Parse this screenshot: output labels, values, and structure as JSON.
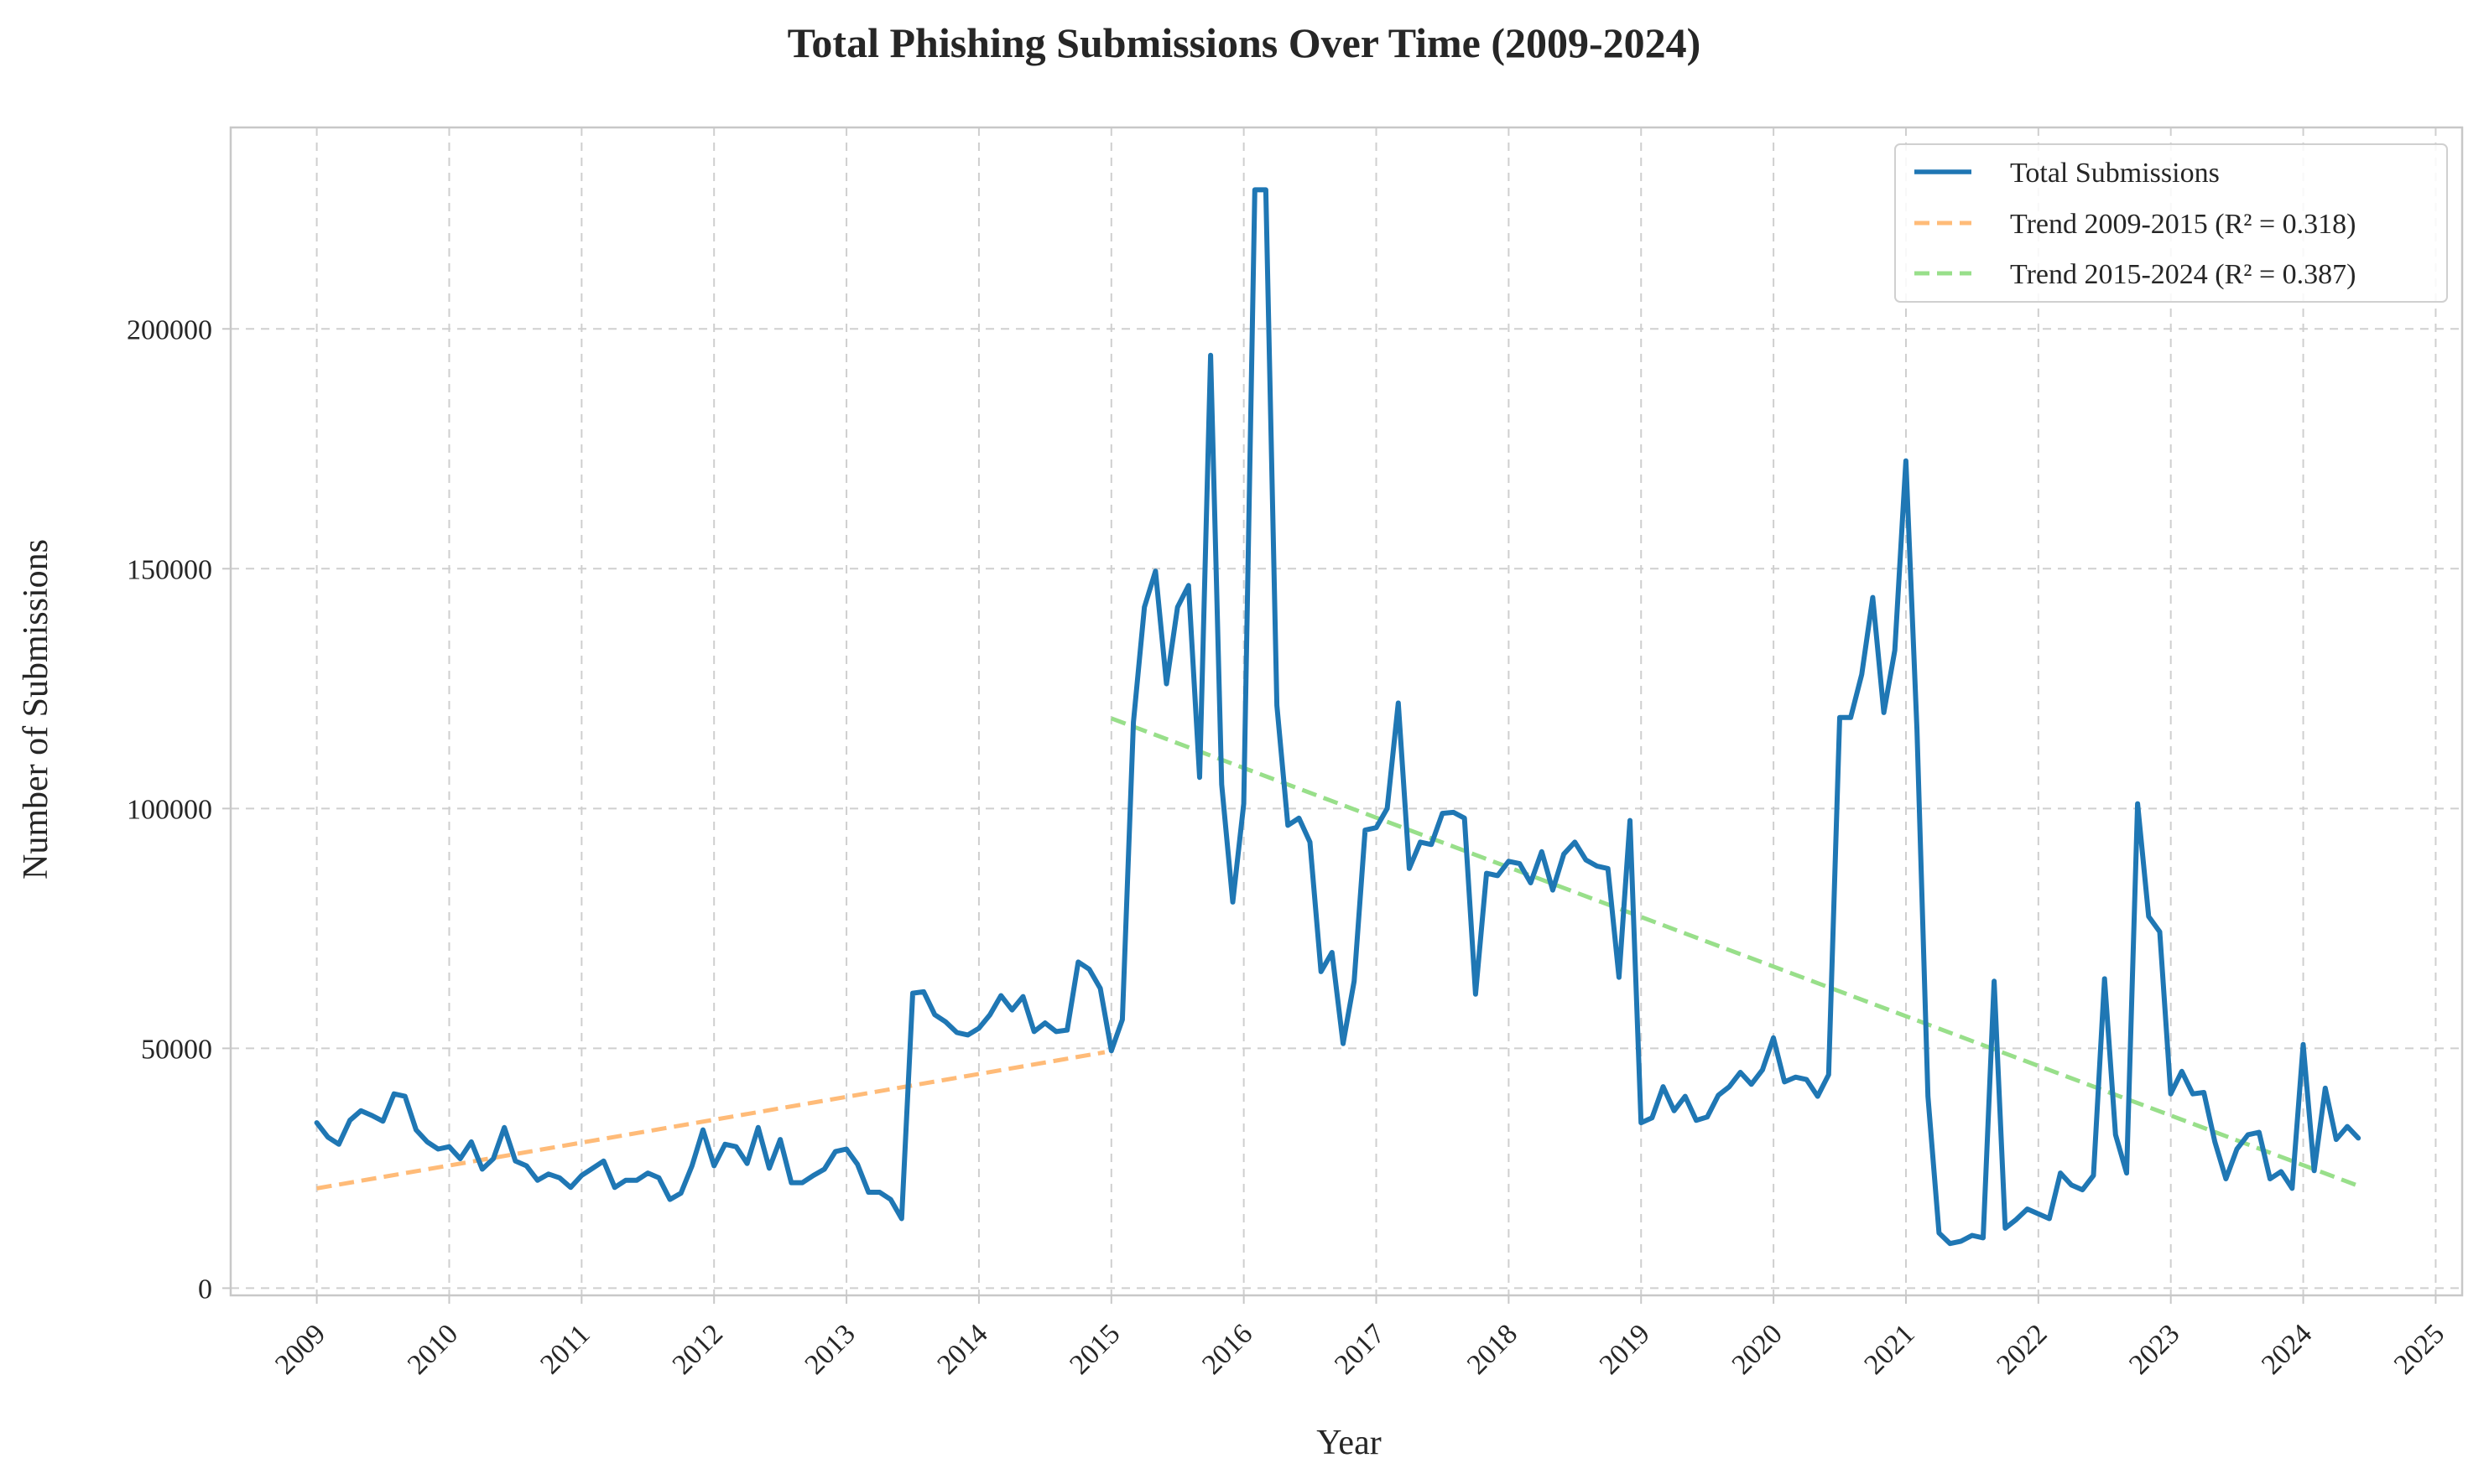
{
  "chart_data": {
    "type": "line",
    "title": "Total Phishing Submissions Over Time (2009-2024)",
    "xlabel": "Year",
    "ylabel": "Number of Submissions",
    "xlim": [
      2008.35,
      2025.2
    ],
    "ylim": [
      -1500,
      242000
    ],
    "xticks": [
      2009,
      2010,
      2011,
      2012,
      2013,
      2014,
      2015,
      2016,
      2017,
      2018,
      2019,
      2020,
      2021,
      2022,
      2023,
      2024,
      2025
    ],
    "xtick_labels": [
      "2009",
      "2010",
      "2011",
      "2012",
      "2013",
      "2014",
      "2015",
      "2016",
      "2017",
      "2018",
      "2019",
      "2020",
      "2021",
      "2022",
      "2023",
      "2024",
      "2025"
    ],
    "yticks": [
      0,
      50000,
      100000,
      150000,
      200000
    ],
    "ytick_labels": [
      "0",
      "50000",
      "100000",
      "150000",
      "200000"
    ],
    "grid": true,
    "legend_position": "top-right",
    "series": [
      {
        "name": "Total Submissions",
        "color": "#1f77b4",
        "style": "solid",
        "x_start": 2009.0,
        "x_step": 0.08333,
        "values": [
          34500,
          31500,
          30000,
          35000,
          37000,
          36000,
          34800,
          40500,
          40000,
          33000,
          30500,
          29000,
          29500,
          27000,
          30500,
          24800,
          27000,
          33500,
          26500,
          25500,
          22500,
          23800,
          23000,
          21000,
          23500,
          25000,
          26500,
          21000,
          22500,
          22500,
          24000,
          23000,
          18500,
          19800,
          25500,
          33000,
          25500,
          30000,
          29500,
          26000,
          33500,
          25000,
          31000,
          22000,
          22000,
          23500,
          24800,
          28500,
          29000,
          25800,
          20000,
          20000,
          18500,
          14500,
          61500,
          61800,
          57000,
          55500,
          53300,
          52800,
          54200,
          57000,
          61000,
          58000,
          60800,
          53500,
          55300,
          53500,
          53800,
          68000,
          66500,
          62500,
          49500,
          56000,
          118000,
          142000,
          149500,
          126000,
          142000,
          146500,
          106500,
          194500,
          105000,
          80500,
          101000,
          229000,
          229000,
          121500,
          96500,
          98000,
          93000,
          66000,
          70000,
          51000,
          64000,
          95500,
          96000,
          100000,
          122000,
          87500,
          93000,
          92500,
          99000,
          99200,
          98000,
          61300,
          86500,
          86000,
          89000,
          88500,
          84500,
          91000,
          83000,
          90500,
          93000,
          89300,
          88000,
          87500,
          64800,
          97500,
          34500,
          35500,
          42000,
          37000,
          40000,
          35000,
          35700,
          40200,
          42000,
          45000,
          42500,
          45500,
          52200,
          43000,
          44000,
          43500,
          40000,
          44500,
          119000,
          119000,
          128000,
          144000,
          120000,
          133000,
          172500,
          116500,
          40000,
          11500,
          9300,
          9800,
          11000,
          10500,
          64000,
          12500,
          14300,
          16500,
          15500,
          14500,
          24000,
          21500,
          20500,
          23500,
          64500,
          32000,
          24000,
          101000,
          77500,
          74300,
          40500,
          45200,
          40500,
          40800,
          30500,
          22800,
          29000,
          32000,
          32500,
          22800,
          24300,
          20800,
          50800,
          24500,
          41700,
          31000,
          33700,
          31300
        ]
      },
      {
        "name": "Trend 2009-2015 (R² = 0.318)",
        "color": "#ffbb78",
        "style": "dashed",
        "x": [
          2009.0,
          2014.95
        ],
        "values": [
          20800,
          49200
        ]
      },
      {
        "name": "Trend 2015-2024 (R² = 0.387)",
        "color": "#98df8a",
        "style": "dashed",
        "x": [
          2015.0,
          2024.42
        ],
        "values": [
          118800,
          21300
        ]
      }
    ]
  }
}
